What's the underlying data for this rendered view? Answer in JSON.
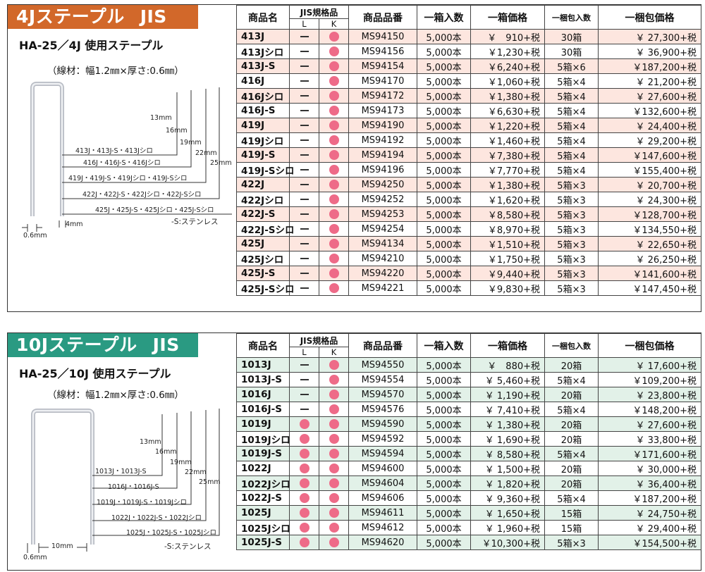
{
  "panel_4j": {
    "banner_name": "4Jステープル",
    "banner_std": "JIS",
    "subtitle": "HA-25／4J 使用ステープル",
    "spec": "（線材：幅1.2㎜×厚さ:0.6㎜）",
    "diagram": {
      "lengths": [
        "13mm",
        "16mm",
        "19mm",
        "22mm",
        "25mm"
      ],
      "groups": [
        "413J・413J-S・413Jシロ",
        "416J・416J-S・416Jシロ",
        "419J・419J-S・419Jシロ・419J-Sシロ",
        "422J・422J-S・422Jシロ・422J-Sシロ",
        "425J・425J-S・425Jシロ・425J-Sシロ"
      ],
      "stainless_note": "-S:ステンレス",
      "width_label": "0.6mm",
      "crown_label": "4mm"
    },
    "headers": {
      "name": "商品名",
      "jis": "JIS規格品",
      "jis_l": "L",
      "jis_k": "K",
      "code": "商品品番",
      "qty": "一箱入数",
      "box_price": "一箱価格",
      "pack_qty": "一梱包入数",
      "pack_price": "一梱包価格"
    },
    "rows": [
      {
        "name": "413J",
        "code": "MS94150",
        "qty": "5,000本",
        "box_price": "￥　910+税",
        "pack_qty": "30箱",
        "pack_price": "￥ 27,300+税"
      },
      {
        "name": "413Jシロ",
        "code": "MS94156",
        "qty": "5,000本",
        "box_price": "￥1,230+税",
        "pack_qty": "30箱",
        "pack_price": "￥ 36,900+税"
      },
      {
        "name": "413J-S",
        "code": "MS94154",
        "qty": "5,000本",
        "box_price": "￥6,240+税",
        "pack_qty": "5箱×6",
        "pack_price": "￥187,200+税"
      },
      {
        "name": "416J",
        "code": "MS94170",
        "qty": "5,000本",
        "box_price": "￥1,060+税",
        "pack_qty": "5箱×4",
        "pack_price": "￥ 21,200+税"
      },
      {
        "name": "416Jシロ",
        "code": "MS94172",
        "qty": "5,000本",
        "box_price": "￥1,380+税",
        "pack_qty": "5箱×4",
        "pack_price": "￥ 27,600+税"
      },
      {
        "name": "416J-S",
        "code": "MS94173",
        "qty": "5,000本",
        "box_price": "￥6,630+税",
        "pack_qty": "5箱×4",
        "pack_price": "￥132,600+税"
      },
      {
        "name": "419J",
        "code": "MS94190",
        "qty": "5,000本",
        "box_price": "￥1,220+税",
        "pack_qty": "5箱×4",
        "pack_price": "￥ 24,400+税"
      },
      {
        "name": "419Jシロ",
        "code": "MS94192",
        "qty": "5,000本",
        "box_price": "￥1,460+税",
        "pack_qty": "5箱×4",
        "pack_price": "￥ 29,200+税"
      },
      {
        "name": "419J-S",
        "code": "MS94194",
        "qty": "5,000本",
        "box_price": "￥7,380+税",
        "pack_qty": "5箱×4",
        "pack_price": "￥147,600+税"
      },
      {
        "name": "419J-Sシロ",
        "code": "MS94196",
        "qty": "5,000本",
        "box_price": "￥7,770+税",
        "pack_qty": "5箱×4",
        "pack_price": "￥155,400+税"
      },
      {
        "name": "422J",
        "code": "MS94250",
        "qty": "5,000本",
        "box_price": "￥1,380+税",
        "pack_qty": "5箱×3",
        "pack_price": "￥ 20,700+税"
      },
      {
        "name": "422Jシロ",
        "code": "MS94252",
        "qty": "5,000本",
        "box_price": "￥1,620+税",
        "pack_qty": "5箱×3",
        "pack_price": "￥ 24,300+税"
      },
      {
        "name": "422J-S",
        "code": "MS94253",
        "qty": "5,000本",
        "box_price": "￥8,580+税",
        "pack_qty": "5箱×3",
        "pack_price": "￥128,700+税"
      },
      {
        "name": "422J-Sシロ",
        "code": "MS94254",
        "qty": "5,000本",
        "box_price": "￥8,970+税",
        "pack_qty": "5箱×3",
        "pack_price": "￥134,550+税"
      },
      {
        "name": "425J",
        "code": "MS94134",
        "qty": "5,000本",
        "box_price": "￥1,510+税",
        "pack_qty": "5箱×3",
        "pack_price": "￥ 22,650+税"
      },
      {
        "name": "425Jシロ",
        "code": "MS94210",
        "qty": "5,000本",
        "box_price": "￥1,750+税",
        "pack_qty": "5箱×3",
        "pack_price": "￥ 26,250+税"
      },
      {
        "name": "425J-S",
        "code": "MS94220",
        "qty": "5,000本",
        "box_price": "￥9,440+税",
        "pack_qty": "5箱×3",
        "pack_price": "￥141,600+税"
      },
      {
        "name": "425J-Sシロ",
        "code": "MS94221",
        "qty": "5,000本",
        "box_price": "￥9,830+税",
        "pack_qty": "5箱×3",
        "pack_price": "￥147,450+税"
      }
    ]
  },
  "panel_10j": {
    "banner_name": "10Jステープル",
    "banner_std": "JIS",
    "subtitle": "HA-25／10J 使用ステープル",
    "spec": "（線材：幅1.2㎜×厚さ:0.6㎜）",
    "diagram": {
      "lengths": [
        "13mm",
        "16mm",
        "19mm",
        "22mm",
        "25mm"
      ],
      "groups": [
        "1013J・1013J-S",
        "1016J・1016J-S",
        "1019J・1019J-S・1019Jシロ",
        "1022J・1022J-S・1022Jシロ",
        "1025J・1025J-S・1025Jシロ"
      ],
      "stainless_note": "-S:ステンレス",
      "width_label": "0.6mm",
      "crown_label": "10mm"
    },
    "headers": {
      "name": "商品名",
      "jis": "JIS規格品",
      "jis_l": "L",
      "jis_k": "K",
      "code": "商品品番",
      "qty": "一箱入数",
      "box_price": "一箱価格",
      "pack_qty": "一梱包入数",
      "pack_price": "一梱包価格"
    },
    "rows": [
      {
        "name": "1013J",
        "jis_l": false,
        "code": "MS94550",
        "qty": "5,000本",
        "box_price": "￥　880+税",
        "pack_qty": "20箱",
        "pack_price": "￥ 17,600+税"
      },
      {
        "name": "1013J-S",
        "jis_l": false,
        "code": "MS94554",
        "qty": "5,000本",
        "box_price": "￥ 5,460+税",
        "pack_qty": "5箱×4",
        "pack_price": "￥109,200+税"
      },
      {
        "name": "1016J",
        "jis_l": false,
        "code": "MS94570",
        "qty": "5,000本",
        "box_price": "￥ 1,190+税",
        "pack_qty": "20箱",
        "pack_price": "￥ 23,800+税"
      },
      {
        "name": "1016J-S",
        "jis_l": false,
        "code": "MS94576",
        "qty": "5,000本",
        "box_price": "￥ 7,410+税",
        "pack_qty": "5箱×4",
        "pack_price": "￥148,200+税"
      },
      {
        "name": "1019J",
        "jis_l": true,
        "code": "MS94590",
        "qty": "5,000本",
        "box_price": "￥ 1,380+税",
        "pack_qty": "20箱",
        "pack_price": "￥ 27,600+税"
      },
      {
        "name": "1019Jシロ",
        "jis_l": true,
        "code": "MS94592",
        "qty": "5,000本",
        "box_price": "￥ 1,690+税",
        "pack_qty": "20箱",
        "pack_price": "￥ 33,800+税"
      },
      {
        "name": "1019J-S",
        "jis_l": true,
        "code": "MS94594",
        "qty": "5,000本",
        "box_price": "￥ 8,580+税",
        "pack_qty": "5箱×4",
        "pack_price": "￥171,600+税"
      },
      {
        "name": "1022J",
        "jis_l": true,
        "code": "MS94600",
        "qty": "5,000本",
        "box_price": "￥ 1,500+税",
        "pack_qty": "20箱",
        "pack_price": "￥ 30,000+税"
      },
      {
        "name": "1022Jシロ",
        "jis_l": true,
        "code": "MS94604",
        "qty": "5,000本",
        "box_price": "￥ 1,820+税",
        "pack_qty": "20箱",
        "pack_price": "￥ 36,400+税"
      },
      {
        "name": "1022J-S",
        "jis_l": true,
        "code": "MS94606",
        "qty": "5,000本",
        "box_price": "￥ 9,360+税",
        "pack_qty": "5箱×4",
        "pack_price": "￥187,200+税"
      },
      {
        "name": "1025J",
        "jis_l": true,
        "code": "MS94611",
        "qty": "5,000本",
        "box_price": "￥ 1,650+税",
        "pack_qty": "15箱",
        "pack_price": "￥ 24,750+税"
      },
      {
        "name": "1025Jシロ",
        "jis_l": true,
        "code": "MS94612",
        "qty": "5,000本",
        "box_price": "￥ 1,960+税",
        "pack_qty": "15箱",
        "pack_price": "￥ 29,400+税"
      },
      {
        "name": "1025J-S",
        "jis_l": true,
        "code": "MS94620",
        "qty": "5,000本",
        "box_price": "￥10,300+税",
        "pack_qty": "5箱×3",
        "pack_price": "￥154,500+税"
      }
    ]
  }
}
